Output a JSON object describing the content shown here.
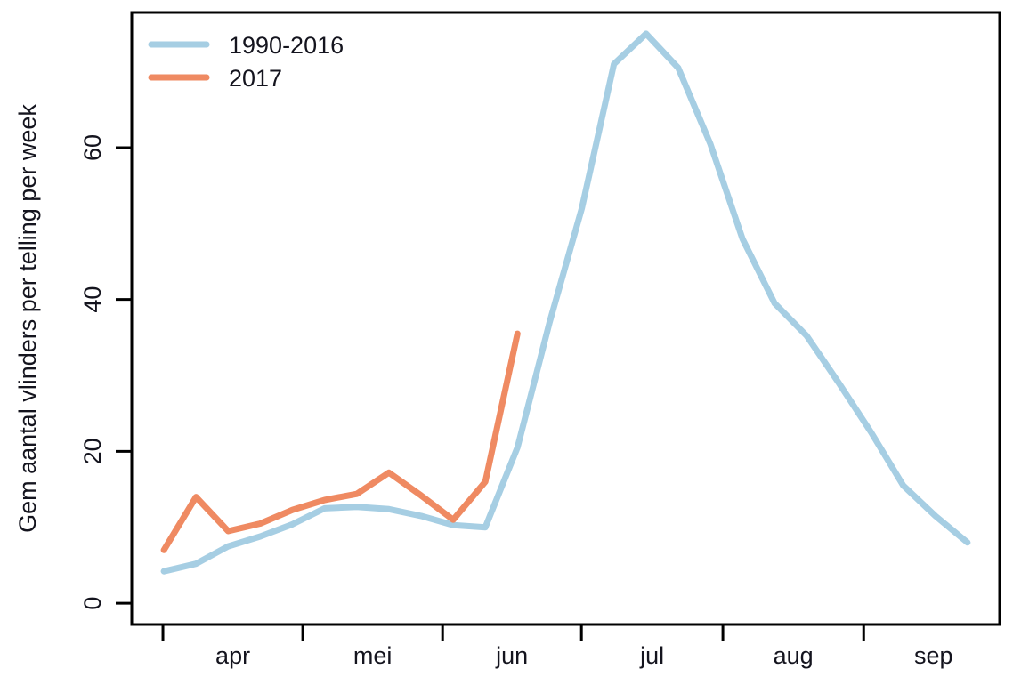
{
  "figure": {
    "description": "Line chart of average butterfly counts per week, long-term average vs 2017"
  },
  "chart_data": {
    "type": "line",
    "title": "",
    "xlabel": "",
    "ylabel": "Gem aantal vlinders per telling per week",
    "grid": false,
    "legend_position": "top-left",
    "axis_color": "#000000",
    "text_color": "#14141e",
    "background_color": "#ffffff",
    "y_ticks": [
      0,
      20,
      40,
      60
    ],
    "ylim": [
      -2.8,
      77.8
    ],
    "xlim": [
      0,
      27
    ],
    "x_unit": "week",
    "x_start_week": 1,
    "month_span_weeks": 4.35,
    "months": [
      {
        "label": "apr",
        "tick_week": 0.97
      },
      {
        "label": "mei",
        "tick_week": 5.32
      },
      {
        "label": "jun",
        "tick_week": 9.67
      },
      {
        "label": "jul",
        "tick_week": 13.99
      },
      {
        "label": "aug",
        "tick_week": 18.39
      },
      {
        "label": "sep",
        "tick_week": 22.77
      }
    ],
    "series": [
      {
        "name": "1990-2016",
        "color": "#A6CEE3",
        "values": [
          4.2,
          5.2,
          7.5,
          8.8,
          10.4,
          12.5,
          12.7,
          12.4,
          11.5,
          10.3,
          10.0,
          20.5,
          37,
          52,
          71,
          75,
          70.5,
          60.5,
          48,
          39.5,
          35.2,
          29,
          22.5,
          15.5,
          11.5,
          8
        ]
      },
      {
        "name": "2017",
        "color": "#EF8A62",
        "values": [
          7,
          14,
          9.5,
          10.5,
          12.3,
          13.6,
          14.4,
          17.2,
          14.2,
          11,
          16,
          35.5
        ]
      }
    ]
  }
}
